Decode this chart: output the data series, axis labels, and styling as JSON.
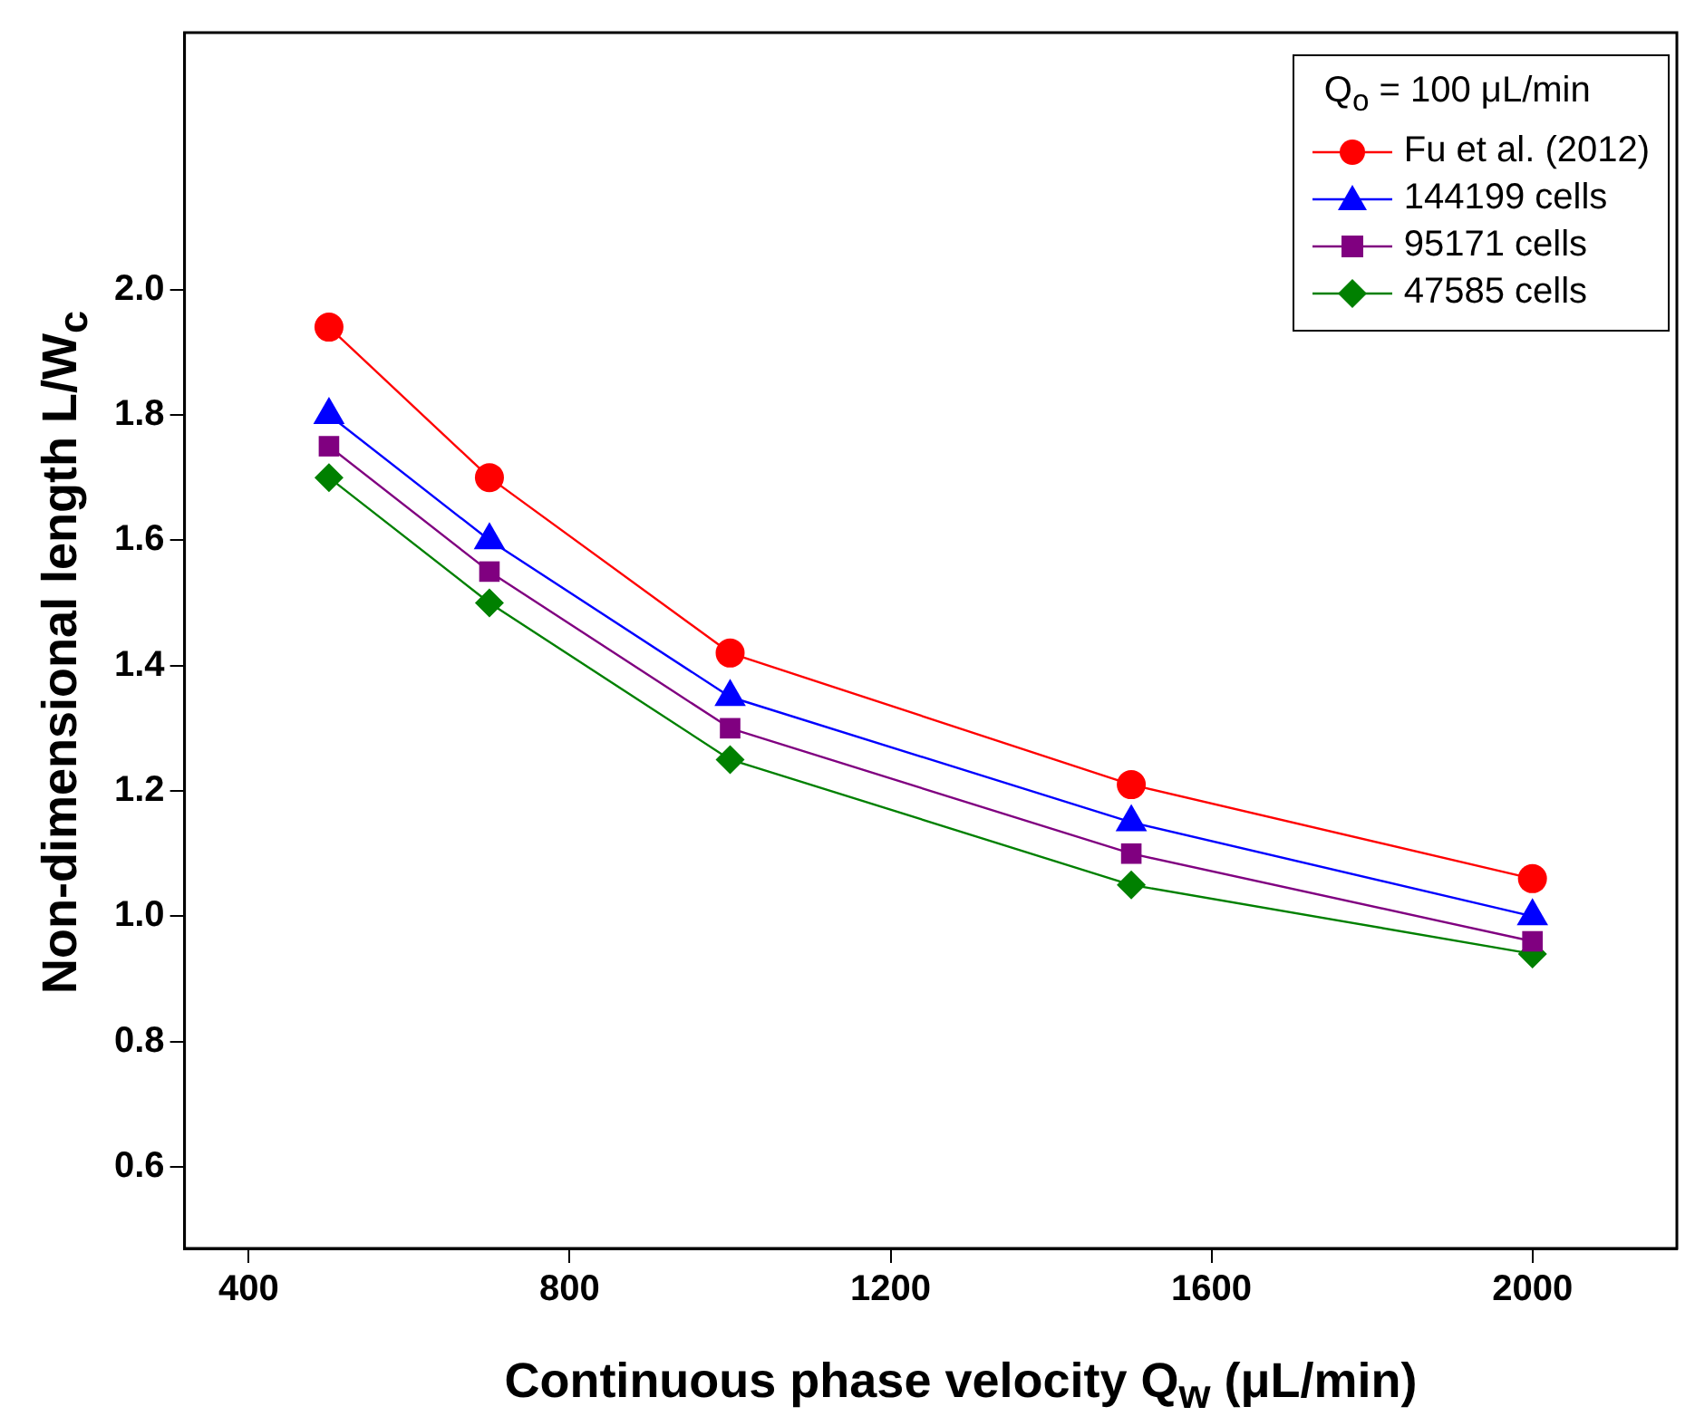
{
  "chart_data": {
    "type": "line",
    "xlabel": "Continuous phase velocity Q$_{w}$ (μL/min)",
    "ylabel": "Non-dimensional length L/W$_{c}$",
    "legend_title": "Q$_{o}$ = 100 μL/min",
    "x": [
      500,
      700,
      1000,
      1500,
      2000
    ],
    "series": [
      {
        "name": "Fu et al. (2012)",
        "color": "#ff0000",
        "marker": "circle",
        "values": [
          1.94,
          1.7,
          1.42,
          1.21,
          1.06
        ]
      },
      {
        "name": "144199 cells",
        "color": "#0000ff",
        "marker": "triangle",
        "values": [
          1.8,
          1.6,
          1.35,
          1.15,
          1.0
        ]
      },
      {
        "name": "95171 cells",
        "color": "#800080",
        "marker": "square",
        "values": [
          1.75,
          1.55,
          1.3,
          1.1,
          0.96
        ]
      },
      {
        "name": "47585 cells",
        "color": "#008000",
        "marker": "diamond",
        "values": [
          1.7,
          1.5,
          1.25,
          1.05,
          0.94
        ]
      }
    ],
    "xlim": [
      320,
      2180
    ],
    "xticks": [
      400,
      800,
      1200,
      1600,
      2000
    ],
    "ylim": [
      0.47,
      2.41
    ],
    "yticks": [
      0.6,
      0.8,
      {
        "value": 1,
        "label": "1.0"
      },
      1.2,
      1.4,
      1.6,
      1.8,
      {
        "value": 2,
        "label": "2.0"
      }
    ],
    "grid": false,
    "legend": "top right",
    "line_style": "solid"
  }
}
